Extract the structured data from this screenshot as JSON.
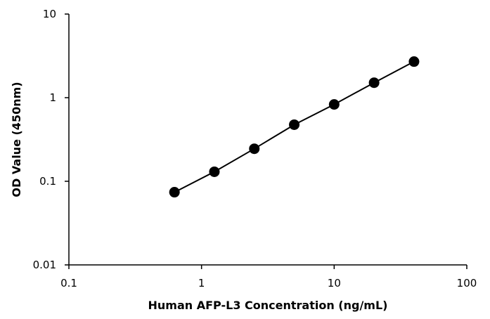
{
  "chart_data": {
    "type": "scatter",
    "xlabel": "Human AFP-L3 Concentration (ng/mL)",
    "ylabel": "OD Value (450nm)",
    "xscale": "log",
    "yscale": "log",
    "xlim": [
      0.1,
      100
    ],
    "ylim": [
      0.01,
      10
    ],
    "x_ticks": [
      0.1,
      1,
      10,
      100
    ],
    "x_tick_labels": [
      "0.1",
      "1",
      "10",
      "100"
    ],
    "y_ticks": [
      0.01,
      0.1,
      1,
      10
    ],
    "y_tick_labels": [
      "0.01",
      "0.1",
      "1",
      "10"
    ],
    "grid": false,
    "legend": "none",
    "line_connected": true,
    "series": [
      {
        "x": [
          0.625,
          1.25,
          2.5,
          5,
          10,
          20,
          40
        ],
        "y": [
          0.074,
          0.13,
          0.245,
          0.475,
          0.83,
          1.51,
          2.7
        ]
      }
    ],
    "colors": {
      "marker": "#000000",
      "line": "#000000",
      "axis": "#000000"
    }
  }
}
